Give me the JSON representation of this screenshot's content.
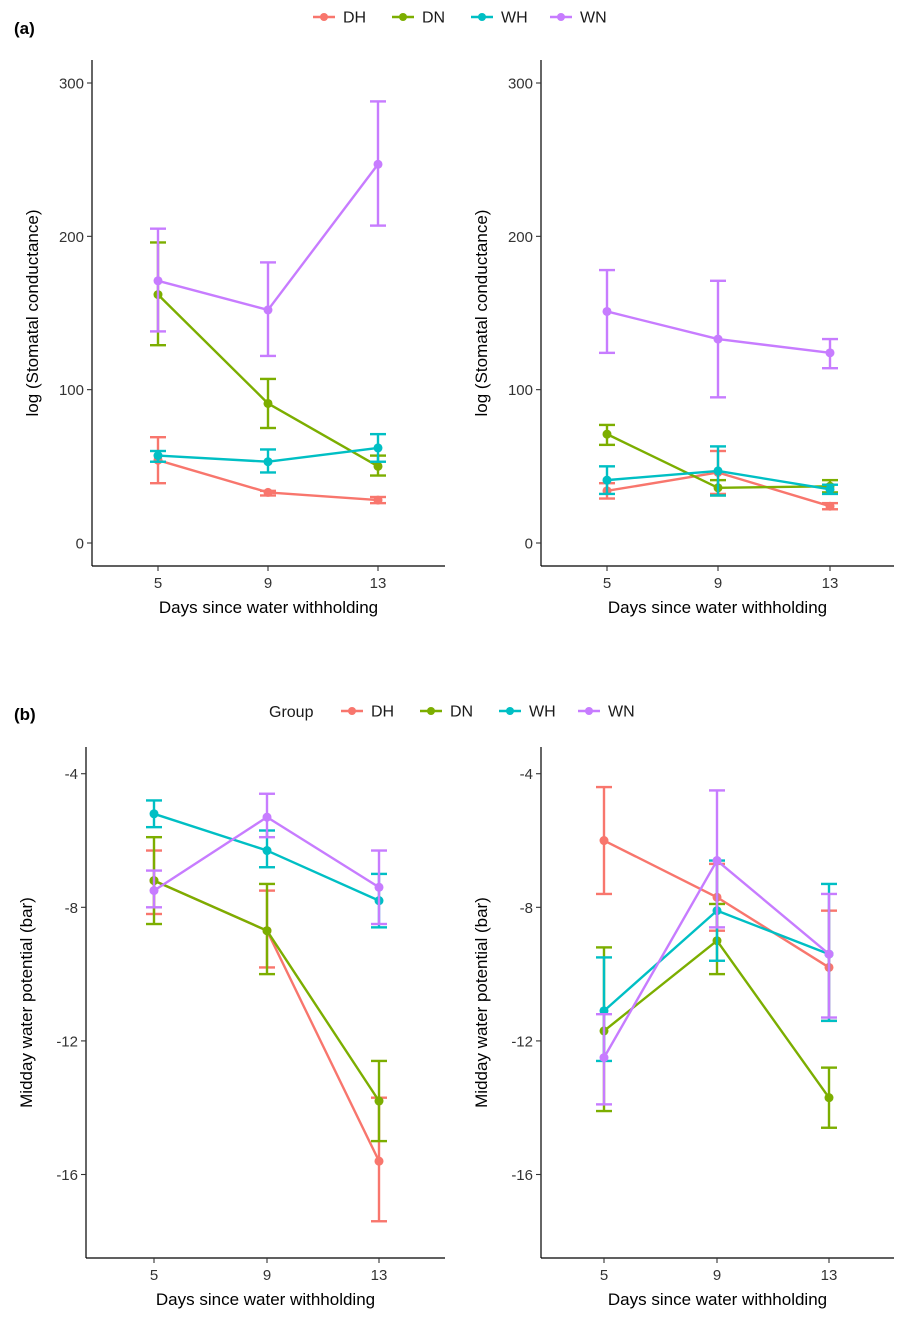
{
  "figure": {
    "panel_labels": [
      "(a)",
      "(b)"
    ]
  },
  "legends": [
    {
      "title": "",
      "entries": [
        {
          "label": "DH",
          "color": "#F8766D"
        },
        {
          "label": "DN",
          "color": "#7CAE00"
        },
        {
          "label": "WH",
          "color": "#00BFC4"
        },
        {
          "label": "WN",
          "color": "#C77CFF"
        }
      ]
    },
    {
      "title": "Group",
      "entries": [
        {
          "label": "DH",
          "color": "#F8766D"
        },
        {
          "label": "DN",
          "color": "#7CAE00"
        },
        {
          "label": "WH",
          "color": "#00BFC4"
        },
        {
          "label": "WN",
          "color": "#C77CFF"
        }
      ]
    }
  ],
  "chart_data": [
    {
      "type": "line",
      "panel": "(a)",
      "xlabel": "Days since water withholding",
      "ylabel": "log (Stomatal conductance)",
      "x": [
        5,
        9,
        13
      ],
      "ylim": [
        -15,
        315
      ],
      "yticks": [
        0,
        100,
        200,
        300
      ],
      "series": [
        {
          "name": "DH",
          "color": "#F8766D",
          "y": [
            54,
            33,
            28
          ],
          "lower": [
            39,
            31,
            26
          ],
          "upper": [
            69,
            34,
            30
          ]
        },
        {
          "name": "DN",
          "color": "#7CAE00",
          "y": [
            162,
            91,
            50
          ],
          "lower": [
            129,
            75,
            44
          ],
          "upper": [
            196,
            107,
            57
          ]
        },
        {
          "name": "WH",
          "color": "#00BFC4",
          "y": [
            57,
            53,
            62
          ],
          "lower": [
            53,
            46,
            53
          ],
          "upper": [
            60,
            61,
            71
          ]
        },
        {
          "name": "WN",
          "color": "#C77CFF",
          "y": [
            171,
            152,
            247
          ],
          "lower": [
            138,
            122,
            207
          ],
          "upper": [
            205,
            183,
            288
          ]
        }
      ]
    },
    {
      "type": "line",
      "panel": "(a)",
      "xlabel": "Days since water withholding",
      "ylabel": "log (Stomatal conductance)",
      "x": [
        5,
        9,
        13
      ],
      "ylim": [
        -15,
        315
      ],
      "yticks": [
        0,
        100,
        200,
        300
      ],
      "series": [
        {
          "name": "DH",
          "color": "#F8766D",
          "y": [
            34,
            46,
            24
          ],
          "lower": [
            29,
            32,
            22
          ],
          "upper": [
            39,
            60,
            26
          ]
        },
        {
          "name": "DN",
          "color": "#7CAE00",
          "y": [
            71,
            36,
            37
          ],
          "lower": [
            64,
            31,
            33
          ],
          "upper": [
            77,
            41,
            41
          ]
        },
        {
          "name": "WH",
          "color": "#00BFC4",
          "y": [
            41,
            47,
            35
          ],
          "lower": [
            32,
            31,
            32
          ],
          "upper": [
            50,
            63,
            38
          ]
        },
        {
          "name": "WN",
          "color": "#C77CFF",
          "y": [
            151,
            133,
            124
          ],
          "lower": [
            124,
            95,
            114
          ],
          "upper": [
            178,
            171,
            133
          ]
        }
      ]
    },
    {
      "type": "line",
      "panel": "(b)",
      "xlabel": "Days since water withholding",
      "ylabel": "Midday water potential (bar)",
      "x": [
        5,
        9,
        13
      ],
      "ylim": [
        -18.5,
        -3.2
      ],
      "yticks": [
        -16,
        -12,
        -8,
        -4
      ],
      "series": [
        {
          "name": "DH",
          "color": "#F8766D",
          "y": [
            -7.2,
            -8.7,
            -15.6
          ],
          "lower": [
            -8.2,
            -9.8,
            -17.4
          ],
          "upper": [
            -6.3,
            -7.5,
            -13.7
          ]
        },
        {
          "name": "DN",
          "color": "#7CAE00",
          "y": [
            -7.2,
            -8.7,
            -13.8
          ],
          "lower": [
            -8.5,
            -10.0,
            -15.0
          ],
          "upper": [
            -5.9,
            -7.3,
            -12.6
          ]
        },
        {
          "name": "WH",
          "color": "#00BFC4",
          "y": [
            -5.2,
            -6.3,
            -7.8
          ],
          "lower": [
            -5.6,
            -6.8,
            -8.6
          ],
          "upper": [
            -4.8,
            -5.7,
            -7.0
          ]
        },
        {
          "name": "WN",
          "color": "#C77CFF",
          "y": [
            -7.5,
            -5.3,
            -7.4
          ],
          "lower": [
            -8.0,
            -5.9,
            -8.5
          ],
          "upper": [
            -6.9,
            -4.6,
            -6.3
          ]
        }
      ]
    },
    {
      "type": "line",
      "panel": "(b)",
      "xlabel": "Days since water withholding",
      "ylabel": "Midday water potential (bar)",
      "x": [
        5,
        9,
        13
      ],
      "ylim": [
        -18.5,
        -3.2
      ],
      "yticks": [
        -16,
        -12,
        -8,
        -4
      ],
      "series": [
        {
          "name": "DH",
          "color": "#F8766D",
          "y": [
            -6.0,
            -7.7,
            -9.8
          ],
          "lower": [
            -7.6,
            -8.7,
            -11.4
          ],
          "upper": [
            -4.4,
            -6.7,
            -8.1
          ]
        },
        {
          "name": "DN",
          "color": "#7CAE00",
          "y": [
            -11.7,
            -9.0,
            -13.7
          ],
          "lower": [
            -14.1,
            -10.0,
            -14.6
          ],
          "upper": [
            -9.2,
            -7.9,
            -12.8
          ]
        },
        {
          "name": "WH",
          "color": "#00BFC4",
          "y": [
            -11.1,
            -8.1,
            -9.4
          ],
          "lower": [
            -12.6,
            -9.6,
            -11.4
          ],
          "upper": [
            -9.5,
            -6.6,
            -7.3
          ]
        },
        {
          "name": "WN",
          "color": "#C77CFF",
          "y": [
            -12.5,
            -6.6,
            -9.4
          ],
          "lower": [
            -13.9,
            -8.6,
            -11.3
          ],
          "upper": [
            -11.2,
            -4.5,
            -7.6
          ]
        }
      ]
    }
  ]
}
